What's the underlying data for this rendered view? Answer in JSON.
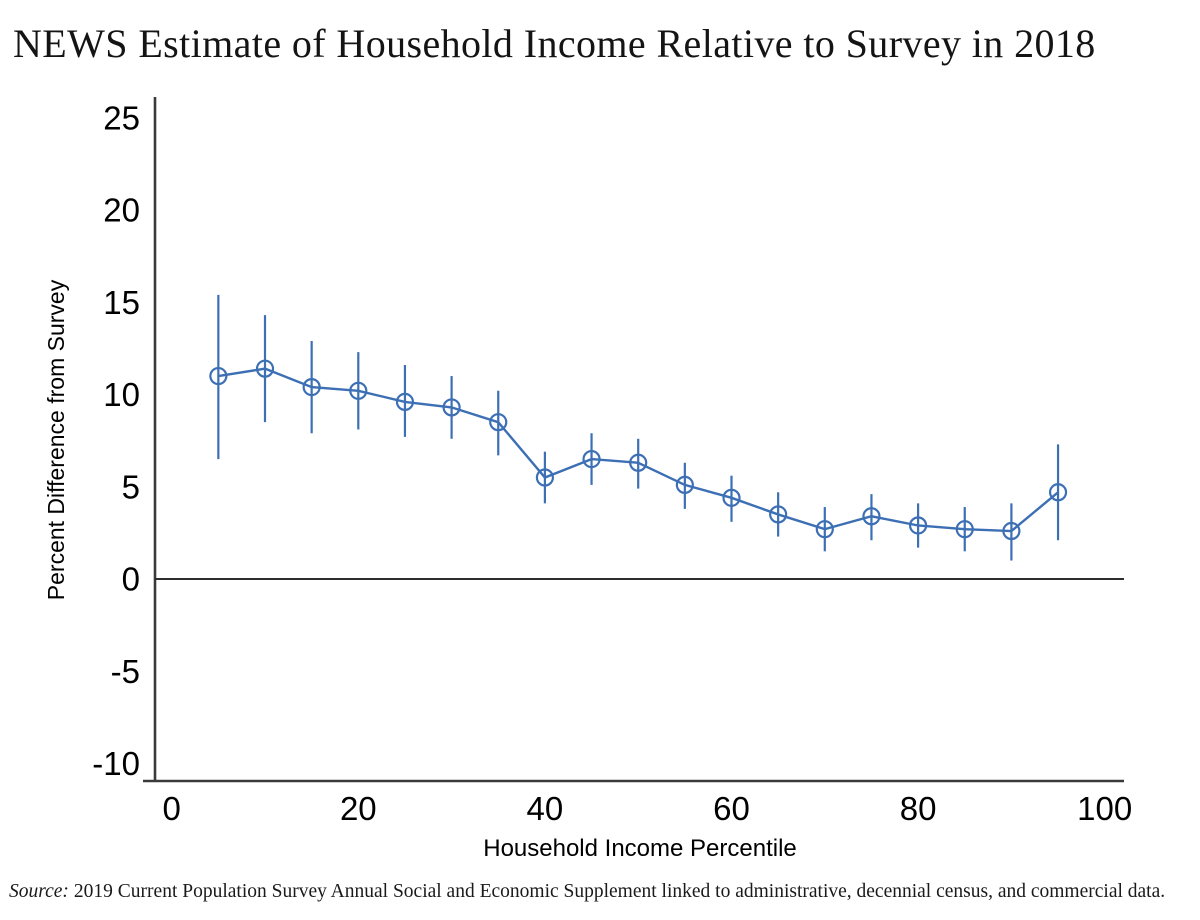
{
  "chart": {
    "title": "NEWS Estimate of Household Income Relative to Survey in 2018",
    "xlabel": "Household Income Percentile",
    "ylabel": "Percent Difference from Survey"
  },
  "source": {
    "label": "Source:",
    "text": "2019 Current Population Survey Annual Social and Economic Supplement linked to administrative, decennial census, and commercial data."
  },
  "chart_data": {
    "type": "line",
    "title": "NEWS Estimate of Household Income Relative to Survey in 2018",
    "xlabel": "Household Income Percentile",
    "ylabel": "Percent Difference from Survey",
    "x": [
      5,
      10,
      15,
      20,
      25,
      30,
      35,
      40,
      45,
      50,
      55,
      60,
      65,
      70,
      75,
      80,
      85,
      90,
      95
    ],
    "y": [
      11.0,
      11.4,
      10.4,
      10.2,
      9.6,
      9.3,
      8.5,
      5.5,
      6.5,
      6.3,
      5.1,
      4.4,
      3.5,
      2.7,
      3.4,
      2.9,
      2.7,
      2.6,
      4.7
    ],
    "ci_low": [
      6.5,
      8.5,
      7.9,
      8.1,
      7.7,
      7.6,
      6.7,
      4.1,
      5.1,
      4.9,
      3.8,
      3.1,
      2.3,
      1.5,
      2.1,
      1.7,
      1.5,
      1.0,
      2.1
    ],
    "ci_high": [
      15.4,
      14.3,
      12.9,
      12.3,
      11.6,
      11.0,
      10.2,
      6.9,
      7.9,
      7.6,
      6.3,
      5.6,
      4.7,
      3.9,
      4.6,
      4.1,
      3.9,
      4.1,
      7.3
    ],
    "xticks": [
      0,
      20,
      40,
      60,
      80,
      100
    ],
    "yticks": [
      25,
      20,
      15,
      10,
      5,
      0,
      -5,
      -10
    ],
    "xlim": [
      0,
      100
    ],
    "ylim": [
      -10,
      25
    ],
    "reference_line_y": 0,
    "grid": "off",
    "legend": "none",
    "marker": "hollow-circle",
    "series_color": "#3c6fb4",
    "axis_color": "#3a3a3a"
  }
}
